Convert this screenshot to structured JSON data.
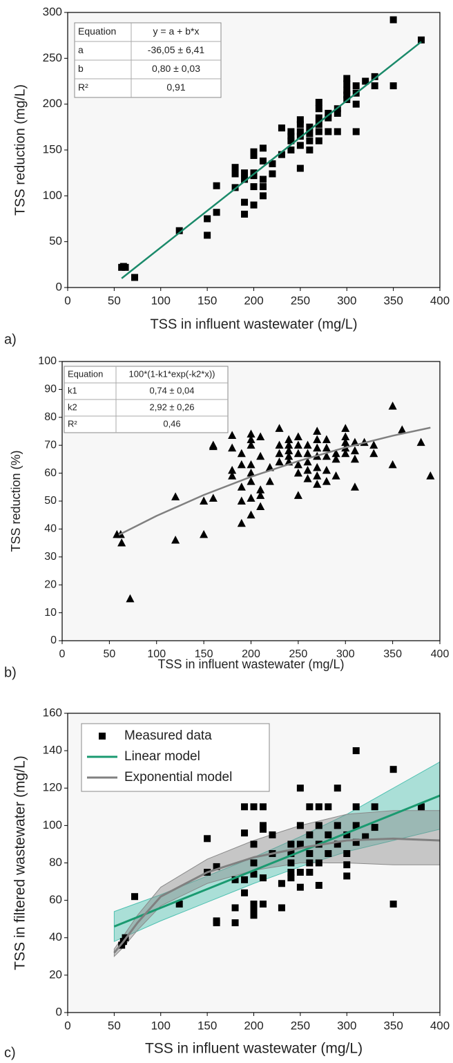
{
  "chart_data": [
    {
      "type": "scatter",
      "label": "a)",
      "x_label": "TSS in influent wastewater (mg/L)",
      "y_label": "TSS reduction (mg/L)",
      "xlim": [
        0,
        400
      ],
      "ylim": [
        0,
        300
      ],
      "xticks": [
        0,
        50,
        100,
        150,
        200,
        250,
        300,
        350,
        400
      ],
      "yticks": [
        0,
        50,
        100,
        150,
        200,
        250,
        300
      ],
      "grid": false,
      "table": {
        "rows": [
          [
            "Equation",
            "y = a + b*x"
          ],
          [
            "a",
            "-36,05 ± 6,41"
          ],
          [
            "b",
            "0,80 ± 0,03"
          ],
          [
            "R²",
            "0,91"
          ]
        ]
      },
      "series": [
        {
          "type": "scatter",
          "marker": "square",
          "color": "#000000",
          "x": [
            58,
            60,
            62,
            72,
            120,
            150,
            150,
            160,
            160,
            180,
            180,
            180,
            190,
            190,
            190,
            190,
            200,
            200,
            200,
            200,
            200,
            200,
            210,
            210,
            210,
            210,
            210,
            220,
            220,
            230,
            230,
            240,
            240,
            240,
            240,
            250,
            250,
            250,
            250,
            250,
            250,
            260,
            260,
            260,
            260,
            270,
            270,
            270,
            270,
            270,
            270,
            280,
            280,
            280,
            290,
            290,
            290,
            300,
            300,
            300,
            300,
            300,
            310,
            310,
            310,
            310,
            320,
            330,
            330,
            350,
            350,
            380
          ],
          "values": [
            22,
            23,
            22,
            11,
            62,
            75,
            57,
            111,
            82,
            124,
            131,
            109,
            125,
            93,
            80,
            118,
            148,
            144,
            125,
            110,
            90,
            122,
            152,
            138,
            110,
            100,
            118,
            135,
            124,
            174,
            145,
            170,
            160,
            150,
            165,
            183,
            178,
            165,
            155,
            130,
            170,
            175,
            160,
            150,
            168,
            202,
            195,
            185,
            170,
            160,
            178,
            190,
            170,
            185,
            190,
            170,
            195,
            228,
            222,
            215,
            210,
            205,
            220,
            200,
            170,
            212,
            225,
            230,
            220,
            292,
            220,
            270
          ]
        },
        {
          "type": "line",
          "color": "#1a8a6a",
          "x": [
            58,
            380
          ],
          "values": [
            10,
            268
          ]
        }
      ]
    },
    {
      "type": "scatter",
      "label": "b)",
      "x_label": "TSS in influent wastewater (mg/L)",
      "y_label": "TSS reduction (%)",
      "xlim": [
        0,
        400
      ],
      "ylim": [
        0,
        100
      ],
      "xticks": [
        0,
        50,
        100,
        150,
        200,
        250,
        300,
        350,
        400
      ],
      "yticks": [
        0,
        10,
        20,
        30,
        40,
        50,
        60,
        70,
        80,
        90,
        100
      ],
      "grid": false,
      "table": {
        "rows": [
          [
            "Equation",
            "100*(1-k1*exp(-k2*x))"
          ],
          [
            "k1",
            "0,74 ± 0,04"
          ],
          [
            "k2",
            "2,92 ± 0,26"
          ],
          [
            "R²",
            "0,46"
          ]
        ]
      },
      "series": [
        {
          "type": "scatter",
          "marker": "triangle",
          "color": "#000000",
          "x": [
            58,
            62,
            63,
            72,
            120,
            120,
            150,
            150,
            160,
            160,
            160,
            180,
            180,
            180,
            180,
            190,
            190,
            190,
            190,
            190,
            200,
            200,
            200,
            200,
            200,
            200,
            200,
            200,
            210,
            210,
            210,
            210,
            210,
            220,
            220,
            230,
            230,
            230,
            230,
            240,
            240,
            240,
            240,
            240,
            250,
            250,
            250,
            250,
            250,
            250,
            260,
            260,
            260,
            260,
            260,
            270,
            270,
            270,
            270,
            270,
            270,
            270,
            280,
            280,
            280,
            280,
            280,
            290,
            290,
            290,
            300,
            300,
            300,
            300,
            300,
            310,
            310,
            310,
            310,
            320,
            330,
            330,
            350,
            350,
            360,
            380,
            390
          ],
          "values": [
            38,
            38,
            35,
            15,
            51.5,
            36,
            50,
            38,
            70,
            69.5,
            51,
            73.5,
            69,
            61,
            59,
            67,
            63,
            55,
            50,
            42,
            74,
            72,
            70,
            63,
            60,
            57,
            51,
            45,
            73,
            66,
            54,
            52,
            48,
            62,
            57,
            76,
            70,
            67,
            64,
            72,
            70,
            68,
            66,
            64,
            73,
            70,
            67,
            63,
            60,
            52,
            70,
            67,
            64,
            61,
            58,
            75,
            72,
            69,
            66,
            62,
            59,
            56,
            72,
            69,
            66,
            61,
            57,
            67,
            65,
            59,
            76,
            73,
            71,
            69,
            67,
            71,
            68,
            65,
            55,
            71,
            70,
            67,
            84,
            63,
            75.5,
            71,
            59
          ]
        },
        {
          "type": "line",
          "color": "#808080",
          "x": [
            60,
            100,
            150,
            200,
            250,
            300,
            350,
            390
          ],
          "values": [
            37.9,
            44.7,
            52.2,
            58.7,
            64.3,
            69.2,
            73.4,
            76.3
          ]
        }
      ]
    },
    {
      "type": "scatter",
      "label": "c)",
      "x_label": "TSS in influent wastewater (mg/L)",
      "y_label": "TSS in filtered wastewater (mg/L)",
      "xlim": [
        0,
        400
      ],
      "ylim": [
        0,
        160
      ],
      "xticks": [
        0,
        50,
        100,
        150,
        200,
        250,
        300,
        350,
        400
      ],
      "yticks": [
        0,
        20,
        40,
        60,
        80,
        100,
        120,
        140,
        160
      ],
      "grid": false,
      "legend": "upper left",
      "series": [
        {
          "type": "scatter",
          "name": "Measured data",
          "marker": "square",
          "color": "#000000",
          "x": [
            58,
            60,
            62,
            72,
            120,
            150,
            150,
            160,
            160,
            160,
            180,
            180,
            180,
            190,
            190,
            190,
            190,
            200,
            200,
            200,
            200,
            200,
            200,
            200,
            210,
            210,
            210,
            210,
            210,
            220,
            220,
            230,
            230,
            240,
            240,
            240,
            240,
            240,
            250,
            250,
            250,
            250,
            250,
            260,
            260,
            260,
            260,
            260,
            270,
            270,
            270,
            270,
            270,
            280,
            280,
            280,
            290,
            290,
            290,
            300,
            300,
            300,
            300,
            310,
            310,
            310,
            310,
            320,
            330,
            330,
            350,
            350,
            380
          ],
          "values": [
            36,
            38,
            40,
            62,
            58,
            93,
            75,
            78,
            49,
            48,
            71,
            56,
            48,
            110,
            96,
            71,
            64,
            110,
            90,
            80,
            74,
            58,
            55,
            52,
            110,
            100,
            98,
            72,
            58,
            95,
            85,
            69,
            56,
            90,
            85,
            80,
            75,
            72,
            120,
            100,
            90,
            75,
            67,
            110,
            95,
            85,
            80,
            75,
            110,
            100,
            90,
            80,
            68,
            110,
            95,
            85,
            120,
            100,
            90,
            95,
            85,
            79,
            73,
            140,
            110,
            100,
            91,
            94,
            110,
            99,
            130,
            58,
            110
          ]
        },
        {
          "type": "line",
          "name": "Linear model",
          "color": "#1a9a70",
          "band_color": "#4cc0b0",
          "x": [
            50,
            100,
            150,
            200,
            250,
            300,
            350,
            400
          ],
          "values": [
            46,
            56,
            66,
            76,
            86,
            96,
            106,
            116
          ],
          "band_lower": [
            38,
            49,
            59,
            69,
            78,
            86,
            92,
            98
          ],
          "band_upper": [
            54,
            63,
            73,
            83,
            94,
            106,
            120,
            134
          ]
        },
        {
          "type": "line",
          "name": "Exponential model",
          "color": "#808080",
          "band_color": "#8a8a8a",
          "x": [
            50,
            60,
            75,
            100,
            150,
            200,
            250,
            300,
            350,
            400
          ],
          "values": [
            32,
            38,
            48,
            62,
            75,
            83,
            88,
            92,
            93,
            92
          ],
          "band_lower": [
            30,
            35,
            44,
            57,
            69,
            76,
            80,
            80,
            79,
            79
          ],
          "band_upper": [
            34,
            41,
            52,
            67,
            82,
            92,
            100,
            106,
            108,
            108
          ]
        }
      ]
    }
  ]
}
